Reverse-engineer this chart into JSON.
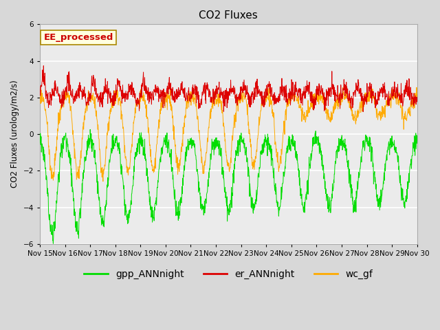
{
  "title": "CO2 Fluxes",
  "ylabel": "CO2 Fluxes (urology/m2/s)",
  "ylim": [
    -6,
    6
  ],
  "yticks": [
    -6,
    -4,
    -2,
    0,
    2,
    4,
    6
  ],
  "n_days": 15,
  "n_per_day": 96,
  "er_color": "#dd0000",
  "gpp_color": "#00dd00",
  "wc_color": "#ffaa00",
  "legend_labels": [
    "gpp_ANNnight",
    "er_ANNnight",
    "wc_gf"
  ],
  "annotation_text": "EE_processed",
  "annotation_color": "#cc0000",
  "bg_color": "#d8d8d8",
  "plot_bg": "#ebebeb",
  "linewidth": 0.7,
  "xtick_labels": [
    "Nov 15",
    "Nov 16",
    "Nov 17",
    "Nov 18",
    "Nov 19",
    "Nov 20",
    "Nov 21",
    "Nov 22",
    "Nov 23",
    "Nov 24",
    "Nov 25",
    "Nov 26",
    "Nov 27",
    "Nov 28",
    "Nov 29",
    "Nov 30"
  ],
  "figsize": [
    6.4,
    4.8
  ],
  "dpi": 100
}
